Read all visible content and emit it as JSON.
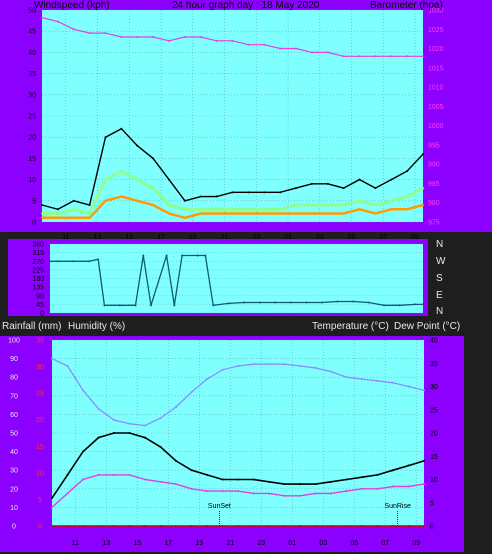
{
  "header": {
    "left_label": "Windspeed (kph)",
    "center_label": "24 hour graph day : 18 May 2020",
    "right_label": "Barometer (hpa)"
  },
  "compass_labels": [
    "N",
    "W",
    "S",
    "E",
    "N"
  ],
  "lower_header": {
    "rain_label": "Rainfall (mm)",
    "humidity_label": "Humidity (%)",
    "temp_label": "Temperature (°C)",
    "dew_label": "Dew Point (°C)"
  },
  "colors": {
    "panel_bg": "#80ffff",
    "frame": "#8c00ff",
    "wind_gust": "#000000",
    "wind_avg": "#8cff8c",
    "wind_low": "#ff9a00",
    "barometer": "#e040e0",
    "wind_dir": "#105a78",
    "humidity": "#8c8cff",
    "temperature": "#000000",
    "dew_point": "#e040e0",
    "rain": "#cc0000"
  },
  "chart_data": [
    {
      "type": "line",
      "title": "24 hour graph day : 18 May 2020",
      "x_tick_labels": [
        "11",
        "13",
        "15",
        "17",
        "19",
        "21",
        "23",
        "01",
        "03",
        "05",
        "07",
        "09"
      ],
      "ylabel_left": "Windspeed (kph)",
      "ylim_left": [
        0,
        50
      ],
      "y_ticks_left": [
        "0",
        "5",
        "10",
        "15",
        "20",
        "25",
        "30",
        "35",
        "40",
        "45",
        "50"
      ],
      "ylabel_right": "Barometer (hpa)",
      "ylim_right": [
        975,
        1030
      ],
      "y_ticks_right": [
        "975",
        "980",
        "985",
        "990",
        "995",
        "1000",
        "1005",
        "1010",
        "1015",
        "1020",
        "1025",
        "1030"
      ],
      "x": [
        9.5,
        10.5,
        11.5,
        12.5,
        13.5,
        14.5,
        15.5,
        16.5,
        17.5,
        18.5,
        19.5,
        20.5,
        21.5,
        22.5,
        23.5,
        24.5,
        25.5,
        26.5,
        27.5,
        28.5,
        29.5,
        30.5,
        31.5,
        32.5,
        33.5
      ],
      "series": [
        {
          "name": "Windspeed (kph)",
          "axis": "left",
          "values": [
            4,
            3,
            5,
            4,
            20,
            22,
            18,
            15,
            10,
            5,
            6,
            6,
            7,
            7,
            7,
            7,
            8,
            9,
            9,
            8,
            10,
            8,
            10,
            12,
            16
          ]
        },
        {
          "name": "Windspeed average",
          "axis": "left",
          "values": [
            2,
            2,
            3,
            2,
            10,
            12,
            10,
            8,
            4,
            3,
            3,
            3,
            3,
            3,
            3,
            3,
            4,
            4,
            4,
            4,
            5,
            4,
            5,
            6,
            8
          ]
        },
        {
          "name": "Windspeed low",
          "axis": "left",
          "values": [
            1,
            1,
            1,
            1,
            5,
            6,
            5,
            4,
            2,
            1,
            2,
            2,
            2,
            2,
            2,
            2,
            2,
            2,
            2,
            2,
            3,
            2,
            3,
            3,
            4
          ]
        },
        {
          "name": "Barometer (hpa)",
          "axis": "right",
          "values": [
            1028,
            1027,
            1025,
            1024,
            1024,
            1023,
            1023,
            1023,
            1022,
            1023,
            1023,
            1022,
            1022,
            1021,
            1021,
            1020,
            1020,
            1019,
            1019,
            1018,
            1018,
            1018,
            1018,
            1018,
            1018
          ]
        }
      ]
    },
    {
      "type": "line",
      "ylabel_right": "N W S E N",
      "ylim": [
        0,
        360
      ],
      "y_ticks": [
        "0",
        "45",
        "90",
        "135",
        "180",
        "225",
        "270",
        "315",
        "360"
      ],
      "x": [
        9.5,
        10,
        11,
        12,
        12.6,
        13,
        14,
        15,
        15.5,
        16,
        17,
        17.5,
        18,
        19,
        19.5,
        20,
        21,
        22,
        23,
        24,
        25,
        26,
        27,
        28,
        29,
        30,
        31,
        32,
        33,
        33.5
      ],
      "series": [
        {
          "name": "Wind direction",
          "values": [
            270,
            270,
            270,
            270,
            280,
            40,
            40,
            40,
            300,
            40,
            300,
            40,
            300,
            300,
            300,
            40,
            50,
            55,
            55,
            55,
            55,
            55,
            55,
            60,
            60,
            55,
            40,
            40,
            45,
            45
          ]
        }
      ]
    },
    {
      "type": "line",
      "x_tick_labels": [
        "11",
        "13",
        "15",
        "17",
        "19",
        "21",
        "23",
        "01",
        "03",
        "05",
        "07",
        "09"
      ],
      "ylabel_left": "Humidity (%)",
      "ylim_left": [
        0,
        100
      ],
      "y_ticks_left": [
        "0",
        "10",
        "20",
        "30",
        "40",
        "50",
        "60",
        "70",
        "80",
        "90",
        "100"
      ],
      "ylim_rain": [
        0,
        35
      ],
      "y_ticks_rain": [
        "0",
        "5",
        "10",
        "15",
        "20",
        "25",
        "30",
        "35"
      ],
      "ylabel_right": "Temperature (°C)",
      "ylim_right": [
        0,
        40
      ],
      "y_ticks_right": [
        "0",
        "5",
        "10",
        "15",
        "20",
        "25",
        "30",
        "35",
        "40"
      ],
      "annotations": [
        "SunSet",
        "SunRise"
      ],
      "x": [
        9.5,
        10.5,
        11.5,
        12.5,
        13.5,
        14.5,
        15.5,
        16.5,
        17.5,
        18.5,
        19.5,
        20.5,
        21.5,
        22.5,
        23.5,
        24.5,
        25.5,
        26.5,
        27.5,
        28.5,
        29.5,
        30.5,
        31.5,
        32.5,
        33.5
      ],
      "series": [
        {
          "name": "Humidity (%)",
          "axis": "left",
          "values": [
            90,
            86,
            73,
            63,
            57,
            55,
            54,
            58,
            64,
            72,
            79,
            84,
            86,
            87,
            87,
            87,
            86,
            85,
            83,
            80,
            79,
            78,
            77,
            75,
            73
          ]
        },
        {
          "name": "Temperature (°C)",
          "axis": "right",
          "values": [
            6,
            11,
            16,
            19,
            20,
            20,
            19,
            17,
            14,
            12,
            11,
            10,
            10,
            10,
            9.5,
            9,
            9,
            9,
            9.5,
            10,
            10.5,
            11,
            12,
            13,
            14
          ]
        },
        {
          "name": "Dew Point (°C)",
          "axis": "right",
          "values": [
            4,
            7,
            10,
            11,
            11,
            11,
            10,
            9.5,
            9,
            8,
            7.5,
            7.5,
            7.5,
            7,
            7,
            6.5,
            6.5,
            7,
            7,
            7.5,
            8,
            8,
            8.5,
            8.5,
            9
          ]
        },
        {
          "name": "Rainfall (mm)",
          "axis": "rain",
          "values": [
            0,
            0,
            0,
            0,
            0,
            0,
            0,
            0,
            0,
            0,
            0,
            0,
            0,
            0,
            0,
            0,
            0,
            0,
            0,
            0,
            0,
            0,
            0,
            0,
            0
          ]
        }
      ]
    }
  ]
}
